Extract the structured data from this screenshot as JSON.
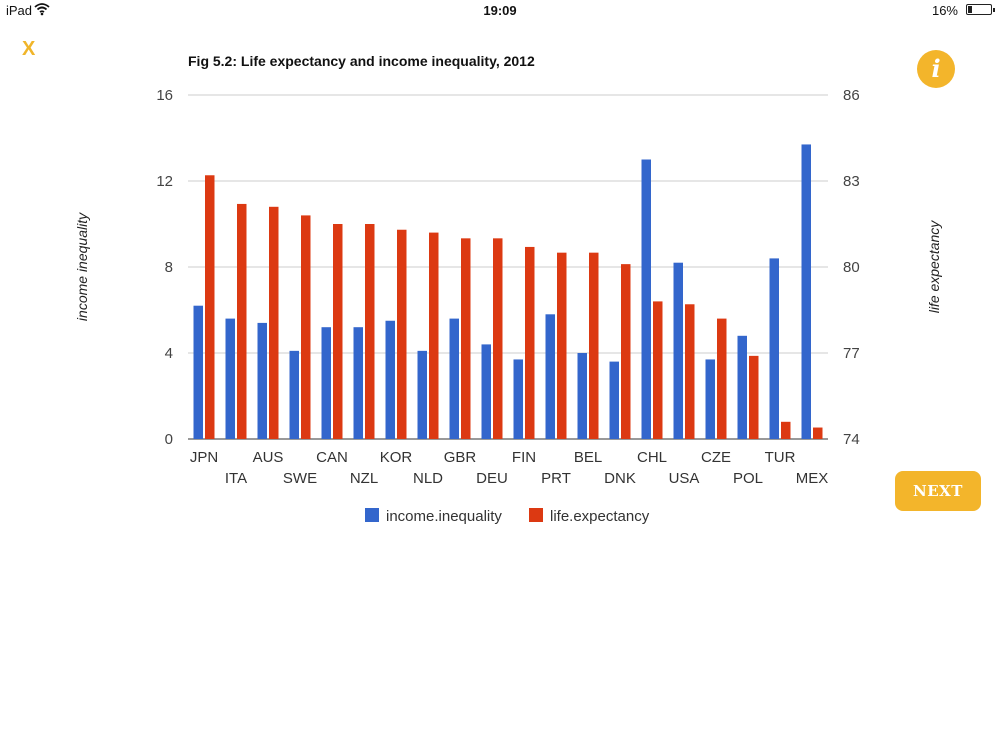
{
  "status_bar": {
    "device": "iPad",
    "time": "19:09",
    "battery": "16%",
    "battery_level": 0.16
  },
  "close_label": "X",
  "info_label": "i",
  "next_label": "NEXT",
  "colors": {
    "income_inequality": "#3366cc",
    "life_expectancy": "#dc3912",
    "accent": "#f3b52b"
  },
  "chart_data": {
    "type": "bar",
    "title": "Fig 5.2: Life expectancy and income inequality, 2012",
    "categories": [
      "JPN",
      "ITA",
      "AUS",
      "SWE",
      "CAN",
      "NZL",
      "KOR",
      "NLD",
      "GBR",
      "DEU",
      "FIN",
      "PRT",
      "BEL",
      "DNK",
      "CHL",
      "USA",
      "CZE",
      "POL",
      "TUR",
      "MEX"
    ],
    "series": [
      {
        "name": "income.inequality",
        "axis": "left",
        "values": [
          6.2,
          5.6,
          5.4,
          4.1,
          5.2,
          5.2,
          5.5,
          4.1,
          5.6,
          4.4,
          3.7,
          5.8,
          4.0,
          3.6,
          13.0,
          8.2,
          3.7,
          4.8,
          8.4,
          13.7
        ]
      },
      {
        "name": "life.expectancy",
        "axis": "right",
        "values": [
          83.2,
          82.2,
          82.1,
          81.8,
          81.5,
          81.5,
          81.3,
          81.2,
          81.0,
          81.0,
          80.7,
          80.5,
          80.5,
          80.1,
          78.8,
          78.7,
          78.2,
          76.9,
          74.6,
          74.4
        ]
      }
    ],
    "ylabel_left": "income inequality",
    "ylabel_right": "life expectancy",
    "ylim_left": [
      0,
      16
    ],
    "yticks_left": [
      0,
      4,
      8,
      12,
      16
    ],
    "ylim_right": [
      74,
      86
    ],
    "yticks_right": [
      74,
      77,
      80,
      83,
      86
    ],
    "grid": true,
    "legend_position": "bottom"
  }
}
